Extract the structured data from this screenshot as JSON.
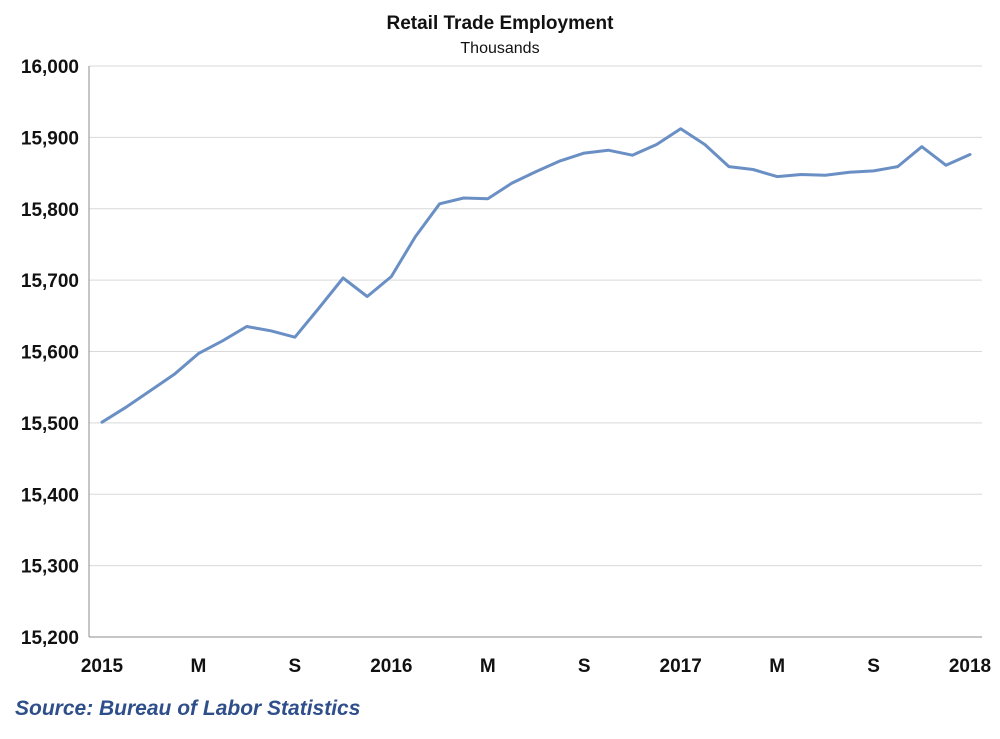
{
  "chart_data": {
    "type": "line",
    "title": "Retail Trade Employment",
    "subtitle": "Thousands",
    "xlabel": "",
    "ylabel": "",
    "ylim": [
      15200,
      16000
    ],
    "yticks": [
      15200,
      15300,
      15400,
      15500,
      15600,
      15700,
      15800,
      15900,
      16000
    ],
    "ytick_labels": [
      "15,200",
      "15,300",
      "15,400",
      "15,500",
      "15,600",
      "15,700",
      "15,800",
      "15,900",
      "16,000"
    ],
    "x": [
      "2015-01",
      "2015-02",
      "2015-03",
      "2015-04",
      "2015-05",
      "2015-06",
      "2015-07",
      "2015-08",
      "2015-09",
      "2015-10",
      "2015-11",
      "2015-12",
      "2016-01",
      "2016-02",
      "2016-03",
      "2016-04",
      "2016-05",
      "2016-06",
      "2016-07",
      "2016-08",
      "2016-09",
      "2016-10",
      "2016-11",
      "2016-12",
      "2017-01",
      "2017-02",
      "2017-03",
      "2017-04",
      "2017-05",
      "2017-06",
      "2017-07",
      "2017-08",
      "2017-09",
      "2017-10",
      "2017-11",
      "2017-12",
      "2018-01"
    ],
    "xticks": [
      {
        "x": "2015-01",
        "label": "2015"
      },
      {
        "x": "2015-05",
        "label": "M"
      },
      {
        "x": "2015-09",
        "label": "S"
      },
      {
        "x": "2016-01",
        "label": "2016"
      },
      {
        "x": "2016-05",
        "label": "M"
      },
      {
        "x": "2016-09",
        "label": "S"
      },
      {
        "x": "2017-01",
        "label": "2017"
      },
      {
        "x": "2017-05",
        "label": "M"
      },
      {
        "x": "2017-09",
        "label": "S"
      },
      {
        "x": "2018-01",
        "label": "2018"
      }
    ],
    "series": [
      {
        "values": [
          15501,
          15522,
          15545,
          15568,
          15597,
          15615,
          15635,
          15629,
          15620,
          15661,
          15703,
          15677,
          15705,
          15761,
          15807,
          15815,
          15814,
          15836,
          15852,
          15867,
          15878,
          15882,
          15875,
          15890,
          15912,
          15890,
          15859,
          15855,
          15845,
          15848,
          15847,
          15851,
          15853,
          15859,
          15887,
          15861,
          15876
        ],
        "color": "#6a8fc4"
      }
    ],
    "grid": true,
    "legend": "none"
  },
  "footer": {
    "source": "Source: Bureau of Labor Statistics"
  }
}
